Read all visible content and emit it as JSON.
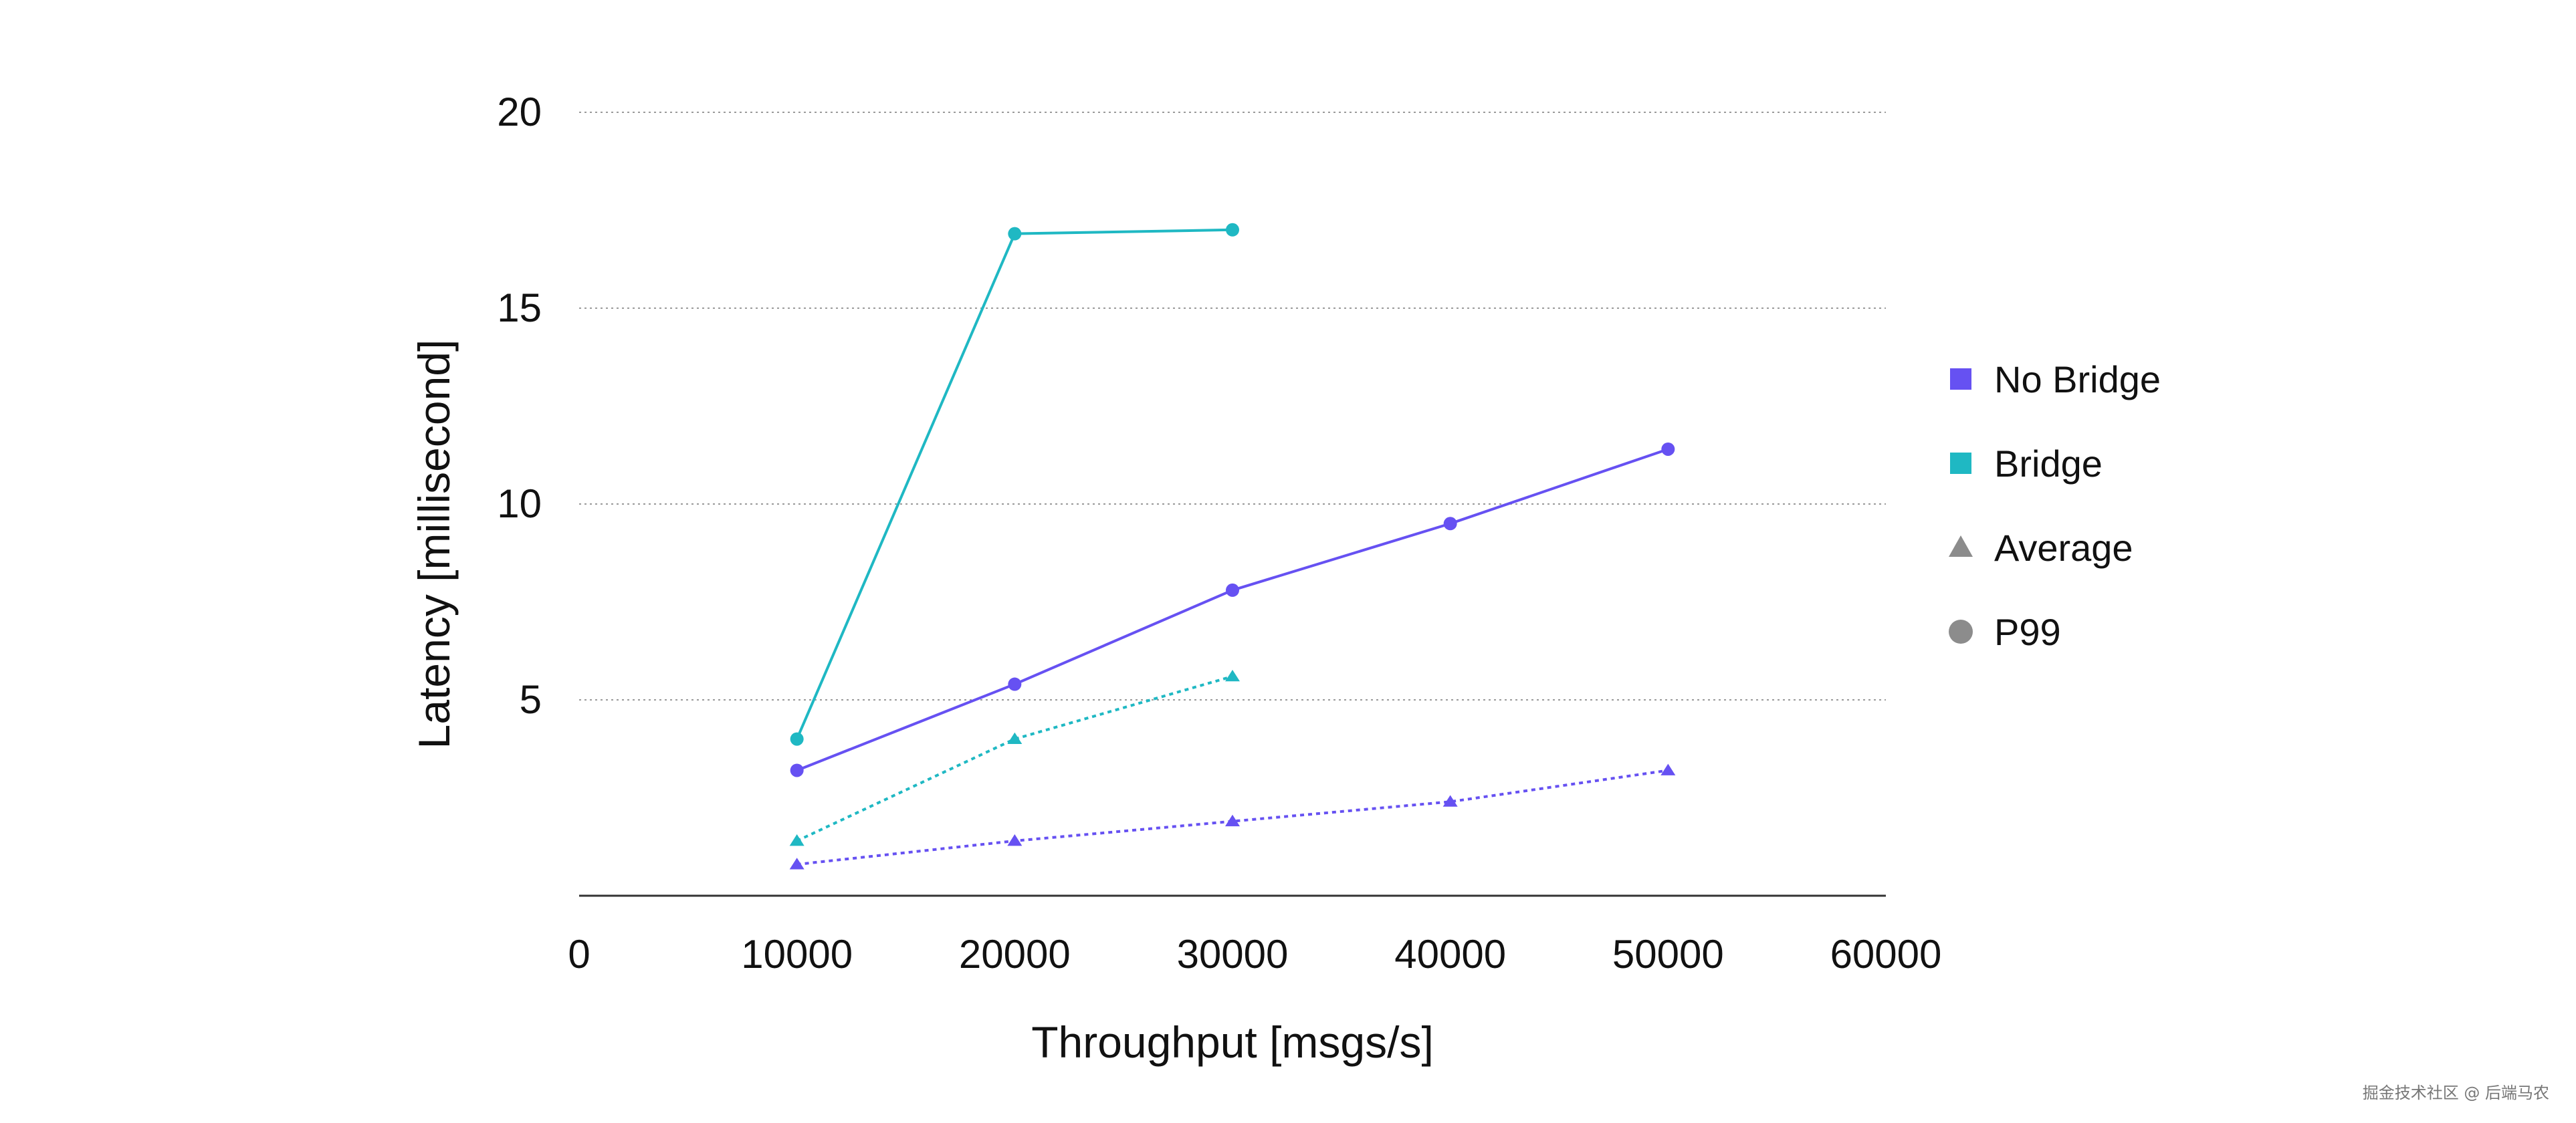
{
  "chart_data": {
    "type": "line",
    "xlabel": "Throughput [msgs/s]",
    "ylabel": "Latency [millisecond]",
    "xlim": [
      0,
      60000
    ],
    "ylim": [
      0,
      20
    ],
    "x_ticks": [
      0,
      10000,
      20000,
      30000,
      40000,
      50000,
      60000
    ],
    "y_ticks": [
      5,
      10,
      15,
      20
    ],
    "grid": "horizontal dotted",
    "legend_position": "right",
    "series": [
      {
        "name": "No Bridge P99",
        "group": "No Bridge",
        "metric": "P99",
        "color": "#6651f2",
        "marker": "circle",
        "line_style": "solid",
        "x": [
          10000,
          20000,
          30000,
          40000,
          50000
        ],
        "y": [
          3.2,
          5.4,
          7.8,
          9.5,
          11.4
        ]
      },
      {
        "name": "No Bridge Average",
        "group": "No Bridge",
        "metric": "Average",
        "color": "#6651f2",
        "marker": "triangle",
        "line_style": "dotted",
        "x": [
          10000,
          20000,
          30000,
          40000,
          50000
        ],
        "y": [
          0.8,
          1.4,
          1.9,
          2.4,
          3.2
        ]
      },
      {
        "name": "Bridge P99",
        "group": "Bridge",
        "metric": "P99",
        "color": "#1fb8c3",
        "marker": "circle",
        "line_style": "solid",
        "x": [
          10000,
          20000,
          30000
        ],
        "y": [
          4.0,
          16.9,
          17.0
        ]
      },
      {
        "name": "Bridge Average",
        "group": "Bridge",
        "metric": "Average",
        "color": "#1fb8c3",
        "marker": "triangle",
        "line_style": "dotted",
        "x": [
          10000,
          20000,
          30000
        ],
        "y": [
          1.4,
          4.0,
          5.6
        ]
      }
    ],
    "legend": [
      {
        "label": "No Bridge",
        "symbol": "square",
        "color": "#6651f2"
      },
      {
        "label": "Bridge",
        "symbol": "square",
        "color": "#1fb8c3"
      },
      {
        "label": "Average",
        "symbol": "triangle",
        "color": "#8c8c8c"
      },
      {
        "label": "P99",
        "symbol": "circle",
        "color": "#8c8c8c"
      }
    ]
  },
  "watermark": "掘金技术社区 @ 后端马农"
}
